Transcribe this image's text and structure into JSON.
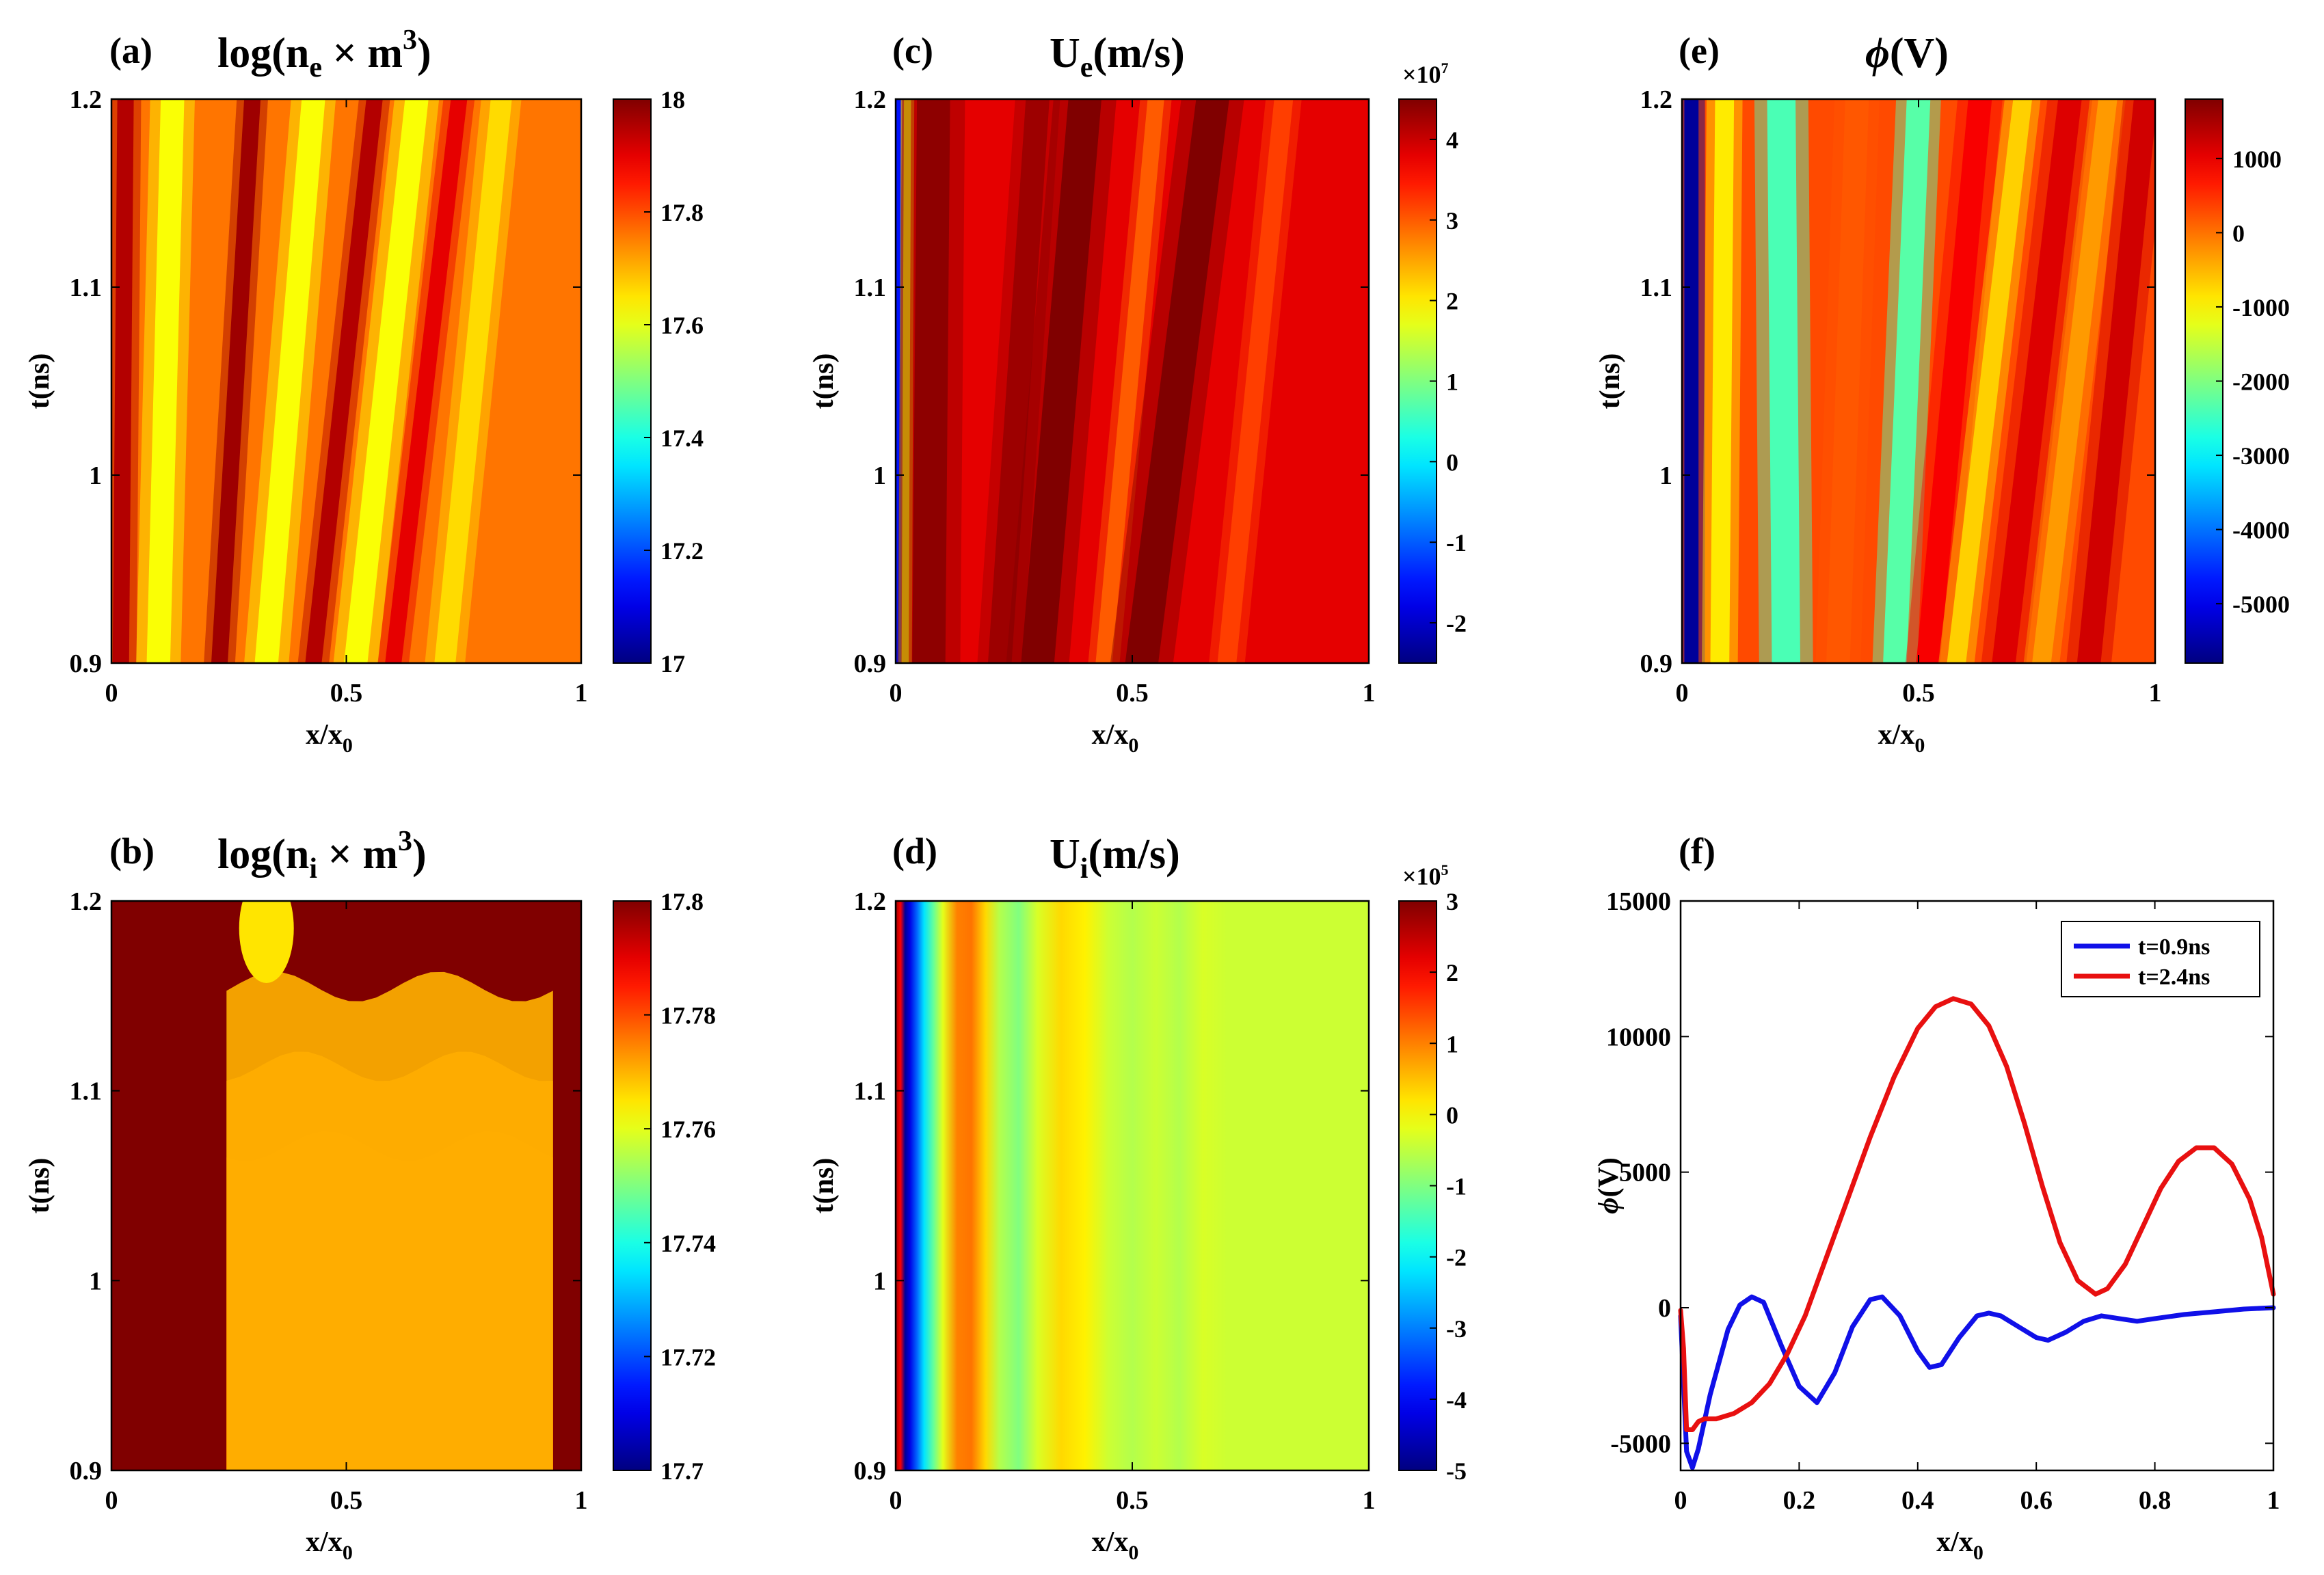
{
  "figure": {
    "panels": [
      {
        "label": "(a)",
        "title_main": "log(n",
        "title_sub": "e",
        "title_rest": " × m",
        "title_sup": "3",
        "title_end": ")"
      },
      {
        "label": "(b)",
        "title_main": "log(n",
        "title_sub": "i",
        "title_rest": " × m",
        "title_sup": "3",
        "title_end": ")"
      },
      {
        "label": "(c)",
        "title_main": "U",
        "title_sub": "e",
        "title_rest": "(m/s)",
        "title_sup": "",
        "title_end": ""
      },
      {
        "label": "(d)",
        "title_main": "U",
        "title_sub": "i",
        "title_rest": "(m/s)",
        "title_sup": "",
        "title_end": ""
      },
      {
        "label": "(e)",
        "title_main": "ϕ",
        "title_sub": "",
        "title_rest": "(V)",
        "title_sup": "",
        "title_end": ""
      },
      {
        "label": "(f)",
        "title_main": "",
        "title_sub": "",
        "title_rest": "",
        "title_sup": "",
        "title_end": ""
      }
    ],
    "xlabel_main": "x/x",
    "xlabel_sub": "0",
    "ylabel": "t(ns)",
    "phi_ylabel": "ϕ(V)"
  },
  "chart_data": [
    {
      "id": "a",
      "type": "heatmap",
      "title": "log(n_e × m^3)",
      "xlabel": "x/x0",
      "ylabel": "t(ns)",
      "xlim": [
        0,
        1
      ],
      "ylim": [
        0.9,
        1.2
      ],
      "xticks": [
        "0",
        "0.5",
        "1"
      ],
      "xtick_values": [
        0,
        0.5,
        1
      ],
      "yticks": [
        "0.9",
        "1",
        "1.1",
        "1.2"
      ],
      "ytick_values": [
        0.9,
        1.0,
        1.1,
        1.2
      ],
      "clim": [
        17,
        18
      ],
      "cbar_ticks": [
        "17",
        "17.2",
        "17.4",
        "17.6",
        "17.8",
        "18"
      ],
      "cbar_tick_values": [
        17,
        17.2,
        17.4,
        17.6,
        17.8,
        18
      ],
      "colormap": "jet",
      "stripes": [
        {
          "x_at_bottom": 0.02,
          "x_at_top": 0.03,
          "value": 17.95,
          "width": 0.035
        },
        {
          "x_at_bottom": 0.1,
          "x_at_top": 0.13,
          "value": 17.62,
          "width": 0.05
        },
        {
          "x_at_bottom": 0.23,
          "x_at_top": 0.3,
          "value": 17.97,
          "width": 0.035
        },
        {
          "x_at_bottom": 0.33,
          "x_at_top": 0.43,
          "value": 17.62,
          "width": 0.05
        },
        {
          "x_at_bottom": 0.43,
          "x_at_top": 0.56,
          "value": 17.95,
          "width": 0.035
        },
        {
          "x_at_bottom": 0.52,
          "x_at_top": 0.65,
          "value": 17.62,
          "width": 0.05
        },
        {
          "x_at_bottom": 0.6,
          "x_at_top": 0.74,
          "value": 17.9,
          "width": 0.035
        },
        {
          "x_at_bottom": 0.71,
          "x_at_top": 0.83,
          "value": 17.66,
          "width": 0.045
        }
      ],
      "background_value": 17.76
    },
    {
      "id": "b",
      "type": "heatmap",
      "title": "log(n_i × m^3)",
      "xlabel": "x/x0",
      "ylabel": "t(ns)",
      "xlim": [
        0,
        1
      ],
      "ylim": [
        0.9,
        1.2
      ],
      "xticks": [
        "0",
        "0.5",
        "1"
      ],
      "xtick_values": [
        0,
        0.5,
        1
      ],
      "yticks": [
        "0.9",
        "1",
        "1.1",
        "1.2"
      ],
      "ytick_values": [
        0.9,
        1.0,
        1.1,
        1.2
      ],
      "clim": [
        17.7,
        17.8
      ],
      "cbar_ticks": [
        "17.7",
        "17.72",
        "17.74",
        "17.76",
        "17.78",
        "17.8"
      ],
      "cbar_tick_values": [
        17.7,
        17.72,
        17.74,
        17.76,
        17.78,
        17.8
      ],
      "colormap": "jet",
      "levels": [
        17.8,
        17.795,
        17.79,
        17.785,
        17.78,
        17.775,
        17.77
      ],
      "background_value": 17.8
    },
    {
      "id": "c",
      "type": "heatmap",
      "title": "U_e(m/s)",
      "xlabel": "x/x0",
      "ylabel": "t(ns)",
      "xlim": [
        0,
        1
      ],
      "ylim": [
        0.9,
        1.2
      ],
      "xticks": [
        "0",
        "0.5",
        "1"
      ],
      "xtick_values": [
        0,
        0.5,
        1
      ],
      "yticks": [
        "0.9",
        "1",
        "1.1",
        "1.2"
      ],
      "ytick_values": [
        0.9,
        1.0,
        1.1,
        1.2
      ],
      "clim": [
        -2.5,
        4.5
      ],
      "cbar_multiplier": "×10",
      "cbar_multiplier_exp": "7",
      "cbar_ticks": [
        "-2",
        "-1",
        "0",
        "1",
        "2",
        "3",
        "4"
      ],
      "cbar_tick_values": [
        -2,
        -1,
        0,
        1,
        2,
        3,
        4
      ],
      "colormap": "jet",
      "stripes": [
        {
          "x_at_bottom": 0.005,
          "x_at_top": 0.005,
          "value": -1.5,
          "width": 0.012
        },
        {
          "x_at_bottom": 0.02,
          "x_at_top": 0.025,
          "value": 1.8,
          "width": 0.015
        },
        {
          "x_at_bottom": 0.07,
          "x_at_top": 0.08,
          "value": 4.4,
          "width": 0.07
        },
        {
          "x_at_bottom": 0.22,
          "x_at_top": 0.3,
          "value": 4.3,
          "width": 0.05
        },
        {
          "x_at_bottom": 0.3,
          "x_at_top": 0.4,
          "value": 4.6,
          "width": 0.07
        },
        {
          "x_at_bottom": 0.44,
          "x_at_top": 0.55,
          "value": 3.0,
          "width": 0.035
        },
        {
          "x_at_bottom": 0.52,
          "x_at_top": 0.67,
          "value": 4.5,
          "width": 0.07
        },
        {
          "x_at_bottom": 0.7,
          "x_at_top": 0.82,
          "value": 3.2,
          "width": 0.04
        }
      ],
      "background_value": 3.8
    },
    {
      "id": "d",
      "type": "heatmap",
      "title": "U_i(m/s)",
      "xlabel": "x/x0",
      "ylabel": "t(ns)",
      "xlim": [
        0,
        1
      ],
      "ylim": [
        0.9,
        1.2
      ],
      "xticks": [
        "0",
        "0.5",
        "1"
      ],
      "xtick_values": [
        0,
        0.5,
        1
      ],
      "yticks": [
        "0.9",
        "1",
        "1.1",
        "1.2"
      ],
      "ytick_values": [
        0.9,
        1.0,
        1.1,
        1.2
      ],
      "clim": [
        -5,
        3
      ],
      "cbar_multiplier": "×10",
      "cbar_multiplier_exp": "5",
      "cbar_ticks": [
        "-5",
        "-4",
        "-3",
        "-2",
        "-1",
        "0",
        "1",
        "2",
        "3"
      ],
      "cbar_tick_values": [
        -5,
        -4,
        -3,
        -2,
        -1,
        0,
        1,
        2,
        3
      ],
      "colormap": "jet",
      "profile_x": [
        0,
        0.01,
        0.02,
        0.03,
        0.045,
        0.06,
        0.08,
        0.1,
        0.13,
        0.16,
        0.19,
        0.22,
        0.26,
        0.3,
        0.35,
        0.4,
        0.45,
        0.5,
        0.55,
        0.6,
        0.65,
        0.7,
        1.0
      ],
      "profile_value": [
        2.8,
        2.0,
        -4.8,
        -4.2,
        -3.2,
        -2.2,
        -1.2,
        -0.2,
        1.0,
        1.1,
        0.3,
        -0.6,
        -1.0,
        -0.3,
        0.3,
        0.1,
        -0.4,
        -0.6,
        -0.4,
        -0.6,
        -0.3,
        -0.4,
        -0.4
      ]
    },
    {
      "id": "e",
      "type": "heatmap",
      "title": "ϕ(V)",
      "xlabel": "x/x0",
      "ylabel": "t(ns)",
      "xlim": [
        0,
        1
      ],
      "ylim": [
        0.9,
        1.2
      ],
      "xticks": [
        "0",
        "0.5",
        "1"
      ],
      "xtick_values": [
        0,
        0.5,
        1
      ],
      "yticks": [
        "0.9",
        "1",
        "1.1",
        "1.2"
      ],
      "ytick_values": [
        0.9,
        1.0,
        1.1,
        1.2
      ],
      "clim": [
        -5800,
        1800
      ],
      "cbar_ticks": [
        "-5000",
        "-4000",
        "-3000",
        "-2000",
        "-1000",
        "0",
        "1000"
      ],
      "cbar_tick_values": [
        -5000,
        -4000,
        -3000,
        -2000,
        -1000,
        0,
        1000
      ],
      "colormap": "jet",
      "stripes": [
        {
          "x_at_bottom": 0.02,
          "x_at_top": 0.02,
          "value": -5600,
          "width": 0.03
        },
        {
          "x_at_bottom": 0.08,
          "x_at_top": 0.09,
          "value": -900,
          "width": 0.04
        },
        {
          "x_at_bottom": 0.22,
          "x_at_top": 0.21,
          "value": -2400,
          "width": 0.06
        },
        {
          "x_at_bottom": 0.33,
          "x_at_top": 0.37,
          "value": 200,
          "width": 0.05
        },
        {
          "x_at_bottom": 0.45,
          "x_at_top": 0.5,
          "value": -2300,
          "width": 0.05
        },
        {
          "x_at_bottom": 0.52,
          "x_at_top": 0.63,
          "value": 900,
          "width": 0.05
        },
        {
          "x_at_bottom": 0.58,
          "x_at_top": 0.72,
          "value": -700,
          "width": 0.04
        },
        {
          "x_at_bottom": 0.68,
          "x_at_top": 0.82,
          "value": 1100,
          "width": 0.05
        },
        {
          "x_at_bottom": 0.76,
          "x_at_top": 0.9,
          "value": -300,
          "width": 0.04
        },
        {
          "x_at_bottom": 0.86,
          "x_at_top": 0.98,
          "value": 1200,
          "width": 0.05
        }
      ],
      "background_value": 300
    },
    {
      "id": "f",
      "type": "line",
      "xlabel": "x/x0",
      "ylabel": "ϕ(V)",
      "xlim": [
        0,
        1
      ],
      "ylim": [
        -6000,
        15000
      ],
      "xticks": [
        "0",
        "0.2",
        "0.4",
        "0.6",
        "0.8",
        "1"
      ],
      "xtick_values": [
        0,
        0.2,
        0.4,
        0.6,
        0.8,
        1.0
      ],
      "yticks": [
        "-5000",
        "0",
        "5000",
        "10000",
        "15000"
      ],
      "ytick_values": [
        -5000,
        0,
        5000,
        10000,
        15000
      ],
      "legend_position": "top-right",
      "series": [
        {
          "name": "t=0.9ns",
          "color": "#1010e8",
          "x": [
            0,
            0.01,
            0.02,
            0.03,
            0.05,
            0.08,
            0.1,
            0.12,
            0.14,
            0.17,
            0.2,
            0.23,
            0.26,
            0.29,
            0.32,
            0.34,
            0.37,
            0.4,
            0.42,
            0.44,
            0.47,
            0.5,
            0.52,
            0.54,
            0.57,
            0.6,
            0.62,
            0.65,
            0.68,
            0.71,
            0.74,
            0.77,
            0.8,
            0.85,
            0.9,
            0.95,
            1.0
          ],
          "y": [
            -300,
            -5300,
            -5900,
            -5200,
            -3200,
            -800,
            100,
            400,
            200,
            -1400,
            -2900,
            -3500,
            -2400,
            -700,
            300,
            400,
            -300,
            -1600,
            -2200,
            -2100,
            -1100,
            -300,
            -200,
            -300,
            -700,
            -1100,
            -1200,
            -900,
            -500,
            -300,
            -400,
            -500,
            -400,
            -250,
            -150,
            -50,
            0
          ]
        },
        {
          "name": "t=2.4ns",
          "color": "#e81010",
          "x": [
            0,
            0.005,
            0.01,
            0.02,
            0.03,
            0.04,
            0.06,
            0.09,
            0.12,
            0.15,
            0.18,
            0.21,
            0.24,
            0.28,
            0.32,
            0.36,
            0.4,
            0.43,
            0.46,
            0.49,
            0.52,
            0.55,
            0.58,
            0.61,
            0.64,
            0.67,
            0.7,
            0.72,
            0.75,
            0.78,
            0.81,
            0.84,
            0.87,
            0.9,
            0.93,
            0.96,
            0.98,
            1.0
          ],
          "y": [
            -100,
            -1500,
            -4500,
            -4500,
            -4200,
            -4100,
            -4100,
            -3900,
            -3500,
            -2800,
            -1700,
            -300,
            1500,
            3900,
            6300,
            8500,
            10300,
            11100,
            11400,
            11200,
            10400,
            8900,
            6800,
            4500,
            2400,
            1000,
            500,
            700,
            1600,
            3000,
            4400,
            5400,
            5900,
            5900,
            5300,
            4000,
            2600,
            500
          ]
        }
      ]
    }
  ]
}
